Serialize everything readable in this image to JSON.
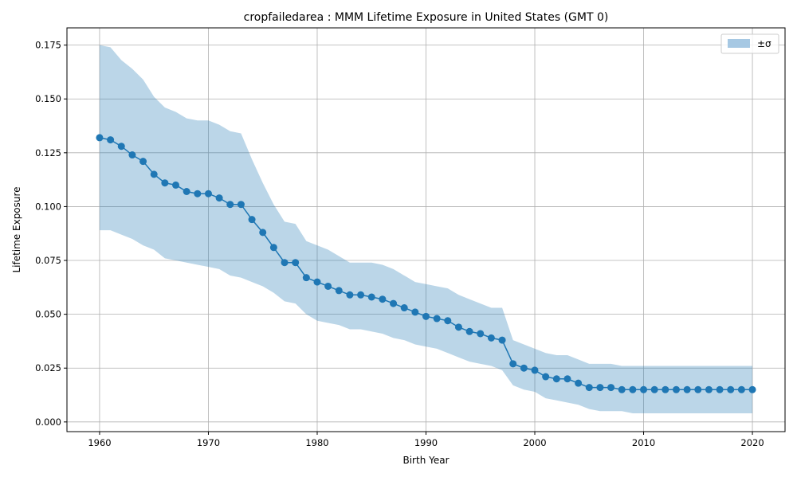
{
  "chart_data": {
    "type": "line",
    "title": "cropfailedarea : MMM Lifetime Exposure in United States (GMT 0)",
    "xlabel": "Birth Year",
    "ylabel": "Lifetime Exposure",
    "xlim": [
      1957,
      2023
    ],
    "ylim": [
      -0.0045,
      0.183
    ],
    "xticks": [
      1960,
      1970,
      1980,
      1990,
      2000,
      2010,
      2020
    ],
    "xtick_labels": [
      "1960",
      "1970",
      "1980",
      "1990",
      "2000",
      "2010",
      "2020"
    ],
    "yticks": [
      0.0,
      0.025,
      0.05,
      0.075,
      0.1,
      0.125,
      0.15,
      0.175
    ],
    "ytick_labels": [
      "0.000",
      "0.025",
      "0.050",
      "0.075",
      "0.100",
      "0.125",
      "0.150",
      "0.175"
    ],
    "grid": true,
    "legend": {
      "position": "top-right",
      "entries": [
        {
          "label": "±σ",
          "color": "#a6c8e3"
        }
      ]
    },
    "colors": {
      "line": "#1f77b4",
      "band": "#1f77b4"
    },
    "x": [
      1960,
      1961,
      1962,
      1963,
      1964,
      1965,
      1966,
      1967,
      1968,
      1969,
      1970,
      1971,
      1972,
      1973,
      1974,
      1975,
      1976,
      1977,
      1978,
      1979,
      1980,
      1981,
      1982,
      1983,
      1984,
      1985,
      1986,
      1987,
      1988,
      1989,
      1990,
      1991,
      1992,
      1993,
      1994,
      1995,
      1996,
      1997,
      1998,
      1999,
      2000,
      2001,
      2002,
      2003,
      2004,
      2005,
      2006,
      2007,
      2008,
      2009,
      2010,
      2011,
      2012,
      2013,
      2014,
      2015,
      2016,
      2017,
      2018,
      2019,
      2020
    ],
    "series": [
      {
        "values": [
          0.132,
          0.131,
          0.128,
          0.124,
          0.121,
          0.115,
          0.111,
          0.11,
          0.107,
          0.106,
          0.106,
          0.104,
          0.101,
          0.101,
          0.094,
          0.088,
          0.081,
          0.074,
          0.074,
          0.067,
          0.065,
          0.063,
          0.061,
          0.059,
          0.059,
          0.058,
          0.057,
          0.055,
          0.053,
          0.051,
          0.049,
          0.048,
          0.047,
          0.044,
          0.042,
          0.041,
          0.039,
          0.038,
          0.027,
          0.025,
          0.024,
          0.021,
          0.02,
          0.02,
          0.018,
          0.016,
          0.016,
          0.016,
          0.015,
          0.015,
          0.015,
          0.015,
          0.015,
          0.015,
          0.015,
          0.015,
          0.015,
          0.015,
          0.015,
          0.015,
          0.015
        ],
        "upper": [
          0.175,
          0.174,
          0.168,
          0.164,
          0.159,
          0.151,
          0.146,
          0.144,
          0.141,
          0.14,
          0.14,
          0.138,
          0.135,
          0.134,
          0.122,
          0.111,
          0.101,
          0.093,
          0.092,
          0.084,
          0.082,
          0.08,
          0.077,
          0.074,
          0.074,
          0.074,
          0.073,
          0.071,
          0.068,
          0.065,
          0.064,
          0.063,
          0.062,
          0.059,
          0.057,
          0.055,
          0.053,
          0.053,
          0.038,
          0.036,
          0.034,
          0.032,
          0.031,
          0.031,
          0.029,
          0.027,
          0.027,
          0.027,
          0.026,
          0.026,
          0.026,
          0.026,
          0.026,
          0.026,
          0.026,
          0.026,
          0.026,
          0.026,
          0.026,
          0.026,
          0.026
        ],
        "lower": [
          0.089,
          0.089,
          0.087,
          0.085,
          0.082,
          0.08,
          0.076,
          0.075,
          0.074,
          0.073,
          0.072,
          0.071,
          0.068,
          0.067,
          0.065,
          0.063,
          0.06,
          0.056,
          0.055,
          0.05,
          0.047,
          0.046,
          0.045,
          0.043,
          0.043,
          0.042,
          0.041,
          0.039,
          0.038,
          0.036,
          0.035,
          0.034,
          0.032,
          0.03,
          0.028,
          0.027,
          0.026,
          0.024,
          0.017,
          0.015,
          0.014,
          0.011,
          0.01,
          0.009,
          0.008,
          0.006,
          0.005,
          0.005,
          0.005,
          0.004,
          0.004,
          0.004,
          0.004,
          0.004,
          0.004,
          0.004,
          0.004,
          0.004,
          0.004,
          0.004,
          0.004
        ]
      }
    ]
  }
}
